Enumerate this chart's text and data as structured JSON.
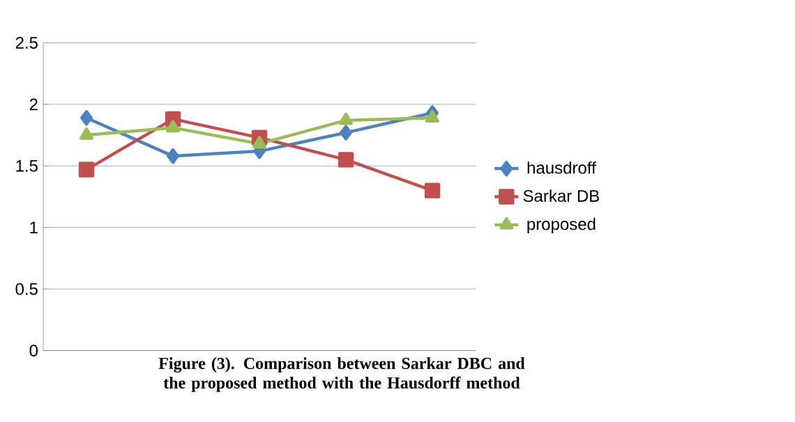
{
  "chart_data": {
    "type": "line",
    "categories": [
      null,
      null,
      null,
      null,
      null
    ],
    "series": [
      {
        "name": "hausdroff",
        "color": "#4f81bd",
        "marker": "diamond",
        "values": [
          1.89,
          1.58,
          1.62,
          1.77,
          1.93
        ]
      },
      {
        "name": "Sarkar DB",
        "color": "#c0504d",
        "marker": "square",
        "values": [
          1.47,
          1.88,
          1.73,
          1.55,
          1.3
        ]
      },
      {
        "name": "proposed",
        "color": "#9bbb59",
        "marker": "triangle",
        "values": [
          1.75,
          1.81,
          1.68,
          1.87,
          1.89
        ]
      }
    ],
    "ylim": [
      0,
      2.5
    ],
    "yticks": [
      0,
      0.5,
      1,
      1.5,
      2,
      2.5
    ],
    "grid": "y",
    "legend": "right",
    "line_style": "solid",
    "annotations": [
      "Figure (3). Comparison between Sarkar DBC and the proposed method with the Hausdorff method"
    ]
  }
}
